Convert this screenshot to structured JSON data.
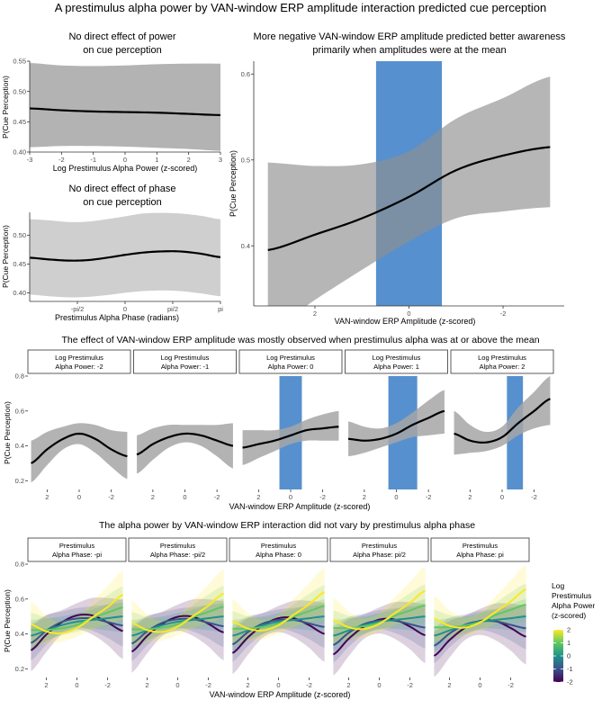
{
  "main_title": "A prestimulus alpha power by VAN-window ERP amplitude interaction predicted cue perception",
  "colors": {
    "ribbon_gray": "#a6a6a6",
    "ribbon_light": "#cfcfcf",
    "blue_band": "#3a7cc6",
    "line": "#000000",
    "grid": "#ebebeb"
  },
  "chart_data": [
    {
      "id": "power",
      "type": "line",
      "title": [
        "No direct effect of power",
        "on cue perception"
      ],
      "xlabel": "Log Prestimulus Alpha Power (z-scored)",
      "ylabel": "P(Cue Perception)",
      "xlim": [
        -3,
        3
      ],
      "ylim": [
        0.4,
        0.55
      ],
      "xticks": [
        {
          "v": -3,
          "label": "-3"
        },
        {
          "v": -2,
          "label": "-2"
        },
        {
          "v": -1,
          "label": "-1"
        },
        {
          "v": 0,
          "label": "0"
        },
        {
          "v": 1,
          "label": "1"
        },
        {
          "v": 2,
          "label": "2"
        },
        {
          "v": 3,
          "label": "3"
        }
      ],
      "yticks": [
        {
          "v": 0.4,
          "label": "0.40"
        },
        {
          "v": 0.45,
          "label": "0.45"
        },
        {
          "v": 0.5,
          "label": "0.50"
        },
        {
          "v": 0.55,
          "label": "0.55"
        }
      ],
      "line": {
        "x": [
          -3,
          -2,
          -1,
          0,
          1,
          2,
          3
        ],
        "y": [
          0.472,
          0.469,
          0.467,
          0.466,
          0.465,
          0.463,
          0.461
        ]
      },
      "ribbon": {
        "x": [
          -3,
          -2,
          -1,
          0,
          1,
          2,
          3
        ],
        "lower": [
          0.408,
          0.41,
          0.41,
          0.409,
          0.407,
          0.405,
          0.402
        ],
        "upper": [
          0.547,
          0.543,
          0.542,
          0.543,
          0.545,
          0.546,
          0.546
        ]
      }
    },
    {
      "id": "phase",
      "type": "line",
      "title": [
        "No direct effect of phase",
        "on cue perception"
      ],
      "xlabel": "Prestimulus Alpha Phase (radians)",
      "ylabel": "P(Cue Perception)",
      "xlim": [
        -3.1416,
        3.1416
      ],
      "ylim": [
        0.385,
        0.54
      ],
      "xticks": [
        {
          "v": -1.5708,
          "label": "-pi/2"
        },
        {
          "v": 0,
          "label": "0"
        },
        {
          "v": 1.5708,
          "label": "pi/2"
        },
        {
          "v": 3.1416,
          "label": "pi"
        }
      ],
      "yticks": [
        {
          "v": 0.4,
          "label": "0.40"
        },
        {
          "v": 0.45,
          "label": "0.45"
        },
        {
          "v": 0.5,
          "label": "0.50"
        }
      ],
      "line": {
        "x": [
          -3.14,
          -2.5,
          -1.8,
          -1.2,
          -0.6,
          0,
          0.6,
          1.2,
          1.8,
          2.5,
          3.14
        ],
        "y": [
          0.461,
          0.458,
          0.456,
          0.457,
          0.461,
          0.466,
          0.47,
          0.472,
          0.472,
          0.468,
          0.462
        ]
      },
      "ribbon": {
        "x": [
          -3.14,
          -2.5,
          -1.8,
          -1.2,
          -0.6,
          0,
          0.6,
          1.2,
          1.8,
          2.5,
          3.14
        ],
        "lower": [
          0.397,
          0.394,
          0.392,
          0.393,
          0.396,
          0.4,
          0.403,
          0.404,
          0.403,
          0.399,
          0.394
        ],
        "upper": [
          0.528,
          0.526,
          0.523,
          0.524,
          0.528,
          0.533,
          0.538,
          0.539,
          0.538,
          0.534,
          0.528
        ]
      }
    },
    {
      "id": "van",
      "type": "line",
      "title": [
        "More negative VAN-window ERP amplitude predicted better awareness",
        "primarily when amplitudes were at the mean"
      ],
      "xlabel": "VAN-window ERP Amplitude (z-scored)",
      "ylabel": "P(Cue Perception)",
      "xlim": [
        3.3,
        -3.3
      ],
      "ylim": [
        0.33,
        0.615
      ],
      "xticks": [
        {
          "v": 2,
          "label": "2"
        },
        {
          "v": 0,
          "label": "0"
        },
        {
          "v": -2,
          "label": "-2"
        }
      ],
      "yticks": [
        {
          "v": 0.4,
          "label": "0.4"
        },
        {
          "v": 0.5,
          "label": "0.5"
        },
        {
          "v": 0.6,
          "label": "0.6"
        }
      ],
      "band": [
        0.7,
        -0.7
      ],
      "line": {
        "x": [
          3,
          2,
          1,
          0,
          -1,
          -2,
          -3
        ],
        "y": [
          0.395,
          0.413,
          0.432,
          0.457,
          0.488,
          0.505,
          0.515
        ]
      },
      "ribbon": {
        "x": [
          3,
          2,
          1,
          0,
          -1,
          -2,
          -3
        ],
        "lower": [
          0.3,
          0.337,
          0.372,
          0.405,
          0.432,
          0.44,
          0.445
        ],
        "upper": [
          0.497,
          0.493,
          0.495,
          0.51,
          0.548,
          0.572,
          0.597
        ]
      }
    }
  ],
  "row2": {
    "title": "The effect of VAN-window ERP amplitude was mostly observed when prestimulus alpha was at or above the mean",
    "xlabel": "VAN-window ERP Amplitude (z-scored)",
    "ylabel": "P(Cue Perception)",
    "xlim": [
      3.2,
      -3.2
    ],
    "ylim": [
      0.15,
      0.8
    ],
    "xticks": [
      {
        "v": 2,
        "label": "2"
      },
      {
        "v": 0,
        "label": "0"
      },
      {
        "v": -2,
        "label": "-2"
      }
    ],
    "yticks": [
      {
        "v": 0.2,
        "label": "0.2"
      },
      {
        "v": 0.4,
        "label": "0.4"
      },
      {
        "v": 0.6,
        "label": "0.6"
      },
      {
        "v": 0.8,
        "label": "0.8"
      }
    ],
    "panels": [
      {
        "strip": [
          "Log Prestimulus",
          "Alpha Power: -2"
        ],
        "band": null,
        "line": {
          "x": [
            3,
            2,
            1,
            0,
            -1,
            -2,
            -3
          ],
          "y": [
            0.3,
            0.38,
            0.44,
            0.47,
            0.44,
            0.38,
            0.34
          ]
        },
        "ribbon": {
          "lower": [
            0.19,
            0.29,
            0.38,
            0.41,
            0.36,
            0.28,
            0.21
          ],
          "upper": [
            0.43,
            0.48,
            0.51,
            0.53,
            0.52,
            0.49,
            0.48
          ]
        }
      },
      {
        "strip": [
          "Log Prestimulus",
          "Alpha Power: -1"
        ],
        "band": null,
        "line": {
          "x": [
            3,
            2,
            1,
            0,
            -1,
            -2,
            -3
          ],
          "y": [
            0.35,
            0.41,
            0.45,
            0.47,
            0.46,
            0.43,
            0.4
          ]
        },
        "ribbon": {
          "lower": [
            0.24,
            0.32,
            0.39,
            0.42,
            0.4,
            0.34,
            0.27
          ],
          "upper": [
            0.46,
            0.5,
            0.52,
            0.52,
            0.52,
            0.52,
            0.53
          ]
        }
      },
      {
        "strip": [
          "Log Prestimulus",
          "Alpha Power: 0"
        ],
        "band": [
          0.7,
          -0.7
        ],
        "line": {
          "x": [
            3,
            2,
            1,
            0,
            -1,
            -2,
            -3
          ],
          "y": [
            0.39,
            0.41,
            0.43,
            0.46,
            0.49,
            0.5,
            0.51
          ]
        },
        "ribbon": {
          "lower": [
            0.29,
            0.33,
            0.37,
            0.41,
            0.43,
            0.43,
            0.43
          ],
          "upper": [
            0.49,
            0.49,
            0.49,
            0.51,
            0.55,
            0.58,
            0.6
          ]
        }
      },
      {
        "strip": [
          "Log Prestimulus",
          "Alpha Power: 1"
        ],
        "band": [
          0.5,
          -1.3
        ],
        "line": {
          "x": [
            3,
            2,
            1,
            0,
            -1,
            -2,
            -3
          ],
          "y": [
            0.44,
            0.43,
            0.44,
            0.47,
            0.52,
            0.56,
            0.6
          ]
        },
        "ribbon": {
          "lower": [
            0.34,
            0.36,
            0.39,
            0.42,
            0.45,
            0.46,
            0.47
          ],
          "upper": [
            0.54,
            0.51,
            0.5,
            0.53,
            0.59,
            0.66,
            0.72
          ]
        }
      },
      {
        "strip": [
          "Log Prestimulus",
          "Alpha Power: 2"
        ],
        "band": [
          -0.3,
          -1.3
        ],
        "line": {
          "x": [
            3,
            2,
            1,
            0,
            -1,
            -2,
            -3
          ],
          "y": [
            0.47,
            0.43,
            0.42,
            0.45,
            0.53,
            0.6,
            0.67
          ]
        },
        "ribbon": {
          "lower": [
            0.35,
            0.36,
            0.37,
            0.4,
            0.46,
            0.5,
            0.52
          ],
          "upper": [
            0.6,
            0.52,
            0.48,
            0.51,
            0.62,
            0.71,
            0.8
          ]
        }
      }
    ]
  },
  "row3": {
    "title": "The alpha power by VAN-window ERP interaction did not vary by prestimulus alpha phase",
    "xlabel": "VAN-window ERP Amplitude (z-scored)",
    "ylabel": "P(Cue Perception)",
    "xlim": [
      3.2,
      -3.2
    ],
    "ylim": [
      0.15,
      0.8
    ],
    "xticks": [
      {
        "v": 2,
        "label": "2"
      },
      {
        "v": 0,
        "label": "0"
      },
      {
        "v": -2,
        "label": "-2"
      }
    ],
    "yticks": [
      {
        "v": 0.2,
        "label": "0.2"
      },
      {
        "v": 0.4,
        "label": "0.4"
      },
      {
        "v": 0.6,
        "label": "0.6"
      },
      {
        "v": 0.8,
        "label": "0.8"
      }
    ],
    "strips": [
      [
        "Prestimulus",
        "Alpha Phase: -pi"
      ],
      [
        "Prestimulus",
        "Alpha Phase: -pi/2"
      ],
      [
        "Prestimulus",
        "Alpha Phase: 0"
      ],
      [
        "Prestimulus",
        "Alpha Phase: pi/2"
      ],
      [
        "Prestimulus",
        "Alpha Phase: pi"
      ]
    ],
    "x": [
      3,
      2,
      1,
      0,
      -1,
      -2,
      -3
    ],
    "series": [
      {
        "name": "-2",
        "color": "#440154",
        "y": [
          0.29,
          0.38,
          0.45,
          0.49,
          0.49,
          0.45,
          0.4
        ],
        "lower": [
          0.17,
          0.28,
          0.38,
          0.41,
          0.38,
          0.32,
          0.24
        ],
        "upper": [
          0.43,
          0.49,
          0.52,
          0.56,
          0.59,
          0.59,
          0.58
        ]
      },
      {
        "name": "-1",
        "color": "#3b528b",
        "y": [
          0.34,
          0.41,
          0.46,
          0.48,
          0.48,
          0.46,
          0.44
        ],
        "lower": [
          0.24,
          0.33,
          0.4,
          0.43,
          0.41,
          0.37,
          0.32
        ],
        "upper": [
          0.45,
          0.5,
          0.52,
          0.54,
          0.55,
          0.56,
          0.57
        ]
      },
      {
        "name": "0",
        "color": "#21918c",
        "y": [
          0.39,
          0.42,
          0.45,
          0.47,
          0.48,
          0.49,
          0.5
        ],
        "lower": [
          0.3,
          0.36,
          0.4,
          0.43,
          0.43,
          0.42,
          0.41
        ],
        "upper": [
          0.48,
          0.49,
          0.5,
          0.52,
          0.54,
          0.57,
          0.6
        ]
      },
      {
        "name": "1",
        "color": "#5ec962",
        "y": [
          0.43,
          0.43,
          0.44,
          0.46,
          0.5,
          0.53,
          0.56
        ],
        "lower": [
          0.33,
          0.37,
          0.4,
          0.42,
          0.44,
          0.45,
          0.46
        ],
        "upper": [
          0.53,
          0.5,
          0.49,
          0.51,
          0.57,
          0.63,
          0.68
        ]
      },
      {
        "name": "2",
        "color": "#fde725",
        "y": [
          0.47,
          0.43,
          0.42,
          0.45,
          0.51,
          0.57,
          0.64
        ],
        "lower": [
          0.34,
          0.36,
          0.37,
          0.4,
          0.44,
          0.47,
          0.5
        ],
        "upper": [
          0.6,
          0.52,
          0.48,
          0.51,
          0.6,
          0.69,
          0.78
        ]
      }
    ],
    "legend": {
      "title": [
        "Log",
        "Prestimulus",
        "Alpha Power",
        "(z-scored)"
      ],
      "labels": [
        "2",
        "1",
        "0",
        "-1",
        "-2"
      ],
      "range": [
        -2,
        2
      ]
    }
  }
}
